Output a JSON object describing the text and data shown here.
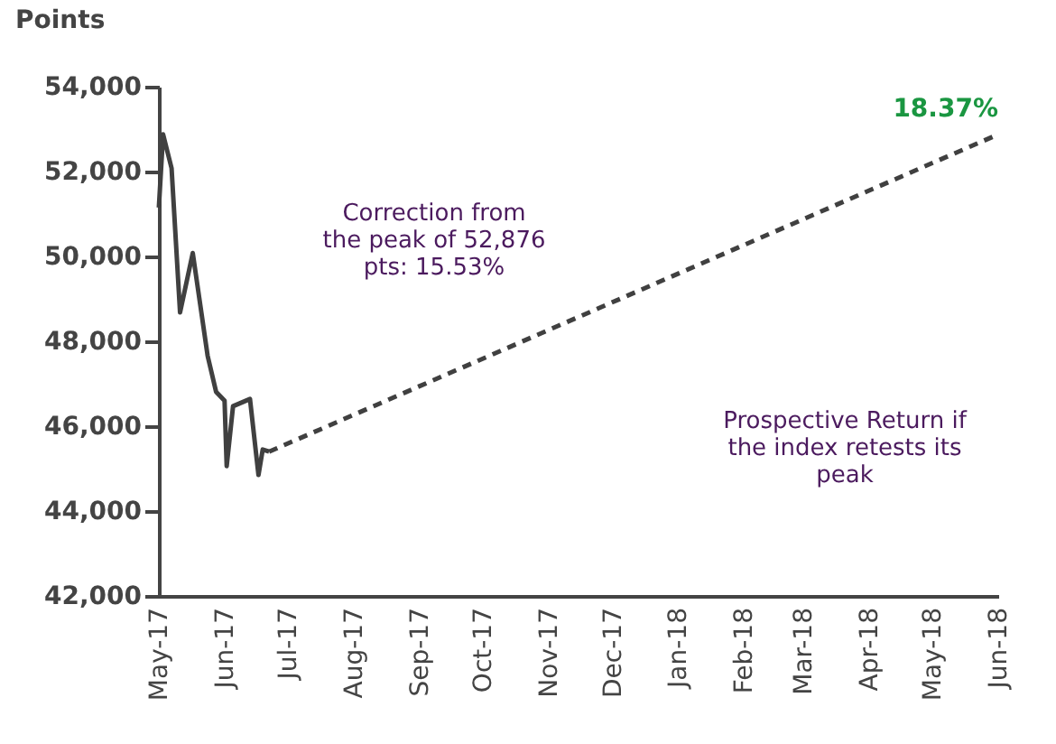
{
  "chart_data": {
    "type": "line",
    "ylabel": "Points",
    "series": [
      {
        "color": "#404040",
        "line_style": "solid",
        "x": [
          "2017-05-01",
          "2017-05-03",
          "2017-05-07",
          "2017-05-11",
          "2017-05-17",
          "2017-05-24",
          "2017-05-28",
          "2017-06-01",
          "2017-06-02",
          "2017-06-05",
          "2017-06-13",
          "2017-06-17",
          "2017-06-19",
          "2017-06-22"
        ],
        "values": [
          51150,
          52876,
          52080,
          48680,
          50080,
          47660,
          46810,
          46600,
          45060,
          46470,
          46640,
          44850,
          45450,
          45400
        ]
      },
      {
        "color": "#404040",
        "line_style": "dashed",
        "x": [
          "2017-06-22",
          "2018-06-01"
        ],
        "values": [
          45400,
          52876
        ]
      }
    ],
    "xlim": [
      "2017-05-01",
      "2018-06-01"
    ],
    "xticks": [
      {
        "value": "2017-05-01",
        "label": "May-17"
      },
      {
        "value": "2017-06-01",
        "label": "Jun-17"
      },
      {
        "value": "2017-07-01",
        "label": "Jul-17"
      },
      {
        "value": "2017-08-01",
        "label": "Aug-17"
      },
      {
        "value": "2017-09-01",
        "label": "Sep-17"
      },
      {
        "value": "2017-10-01",
        "label": "Oct-17"
      },
      {
        "value": "2017-11-01",
        "label": "Nov-17"
      },
      {
        "value": "2017-12-01",
        "label": "Dec-17"
      },
      {
        "value": "2018-01-01",
        "label": "Jan-18"
      },
      {
        "value": "2018-02-01",
        "label": "Feb-18"
      },
      {
        "value": "2018-03-01",
        "label": "Mar-18"
      },
      {
        "value": "2018-04-01",
        "label": "Apr-18"
      },
      {
        "value": "2018-05-01",
        "label": "May-18"
      },
      {
        "value": "2018-06-01",
        "label": "Jun-18"
      }
    ],
    "ylim": [
      42000,
      54000
    ],
    "yticks": [
      {
        "value": 42000,
        "label": "42,000"
      },
      {
        "value": 44000,
        "label": "44,000"
      },
      {
        "value": 46000,
        "label": "46,000"
      },
      {
        "value": 48000,
        "label": "48,000"
      },
      {
        "value": 50000,
        "label": "50,000"
      },
      {
        "value": 52000,
        "label": "52,000"
      },
      {
        "value": 54000,
        "label": "54,000"
      }
    ],
    "grid": false,
    "annotations": [
      "Correction from the peak of 52,876 pts: 15.53%",
      "Prospective Return if the index retests its peak",
      {
        "text": "18.37%",
        "x": "2018-06-01",
        "y": 52876
      }
    ]
  }
}
